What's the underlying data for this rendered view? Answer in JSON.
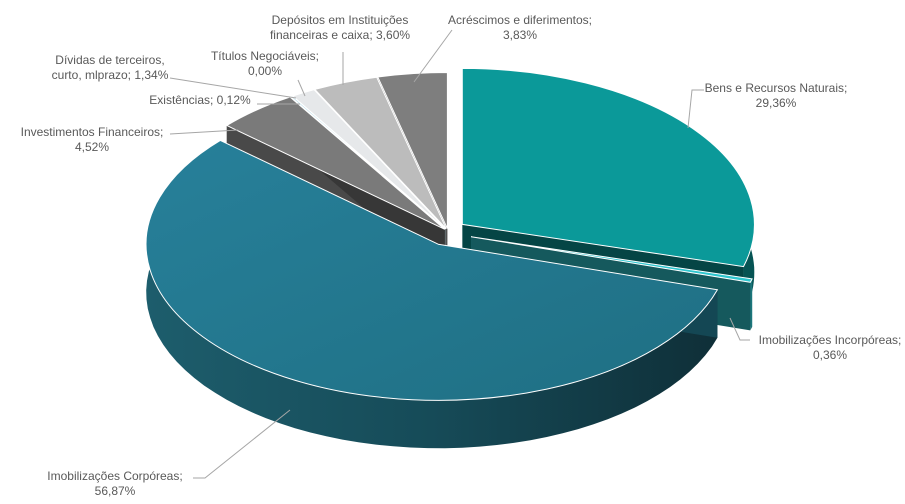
{
  "chart_data": {
    "type": "pie",
    "style": "3d-exploded",
    "slices": [
      {
        "name": "Bens e Recursos Naturais",
        "value": 29.36,
        "label": "29,36%",
        "color": "#0b9999"
      },
      {
        "name": "Imobilizações Incorpóreas",
        "value": 0.36,
        "label": "0,36%",
        "color": "#2ec6cf"
      },
      {
        "name": "Imobilizações Corpóreas",
        "value": 56.87,
        "label": "56,87%",
        "color": "#22778c"
      },
      {
        "name": "Investimentos Financeiros",
        "value": 4.52,
        "label": "4,52%",
        "color": "#7a7a7a"
      },
      {
        "name": "Existências",
        "value": 0.12,
        "label": "0,12%",
        "color": "#bfe0ec"
      },
      {
        "name": "Dívidas de terceiros, curto, mlprazo",
        "value": 1.34,
        "label": "1,34%",
        "color": "#e6e8ea"
      },
      {
        "name": "Títulos Negociáveis",
        "value": 0.0,
        "label": "0,00%",
        "color": "#d5d5d5"
      },
      {
        "name": "Depósitos em Instituições financeiras e caixa",
        "value": 3.6,
        "label": "3,60%",
        "color": "#bcbcbc"
      },
      {
        "name": "Acréscimos e diferimentos",
        "value": 3.83,
        "label": "3,83%",
        "color": "#7e7e7e"
      }
    ],
    "labels": [
      {
        "slice": 0,
        "lines": [
          "Bens e Recursos Naturais;",
          "29,36%"
        ]
      },
      {
        "slice": 1,
        "lines": [
          "Imobilizações Incorpóreas;",
          "0,36%"
        ]
      },
      {
        "slice": 2,
        "lines": [
          "Imobilizações Corpóreas;",
          "56,87%"
        ]
      },
      {
        "slice": 3,
        "lines": [
          "Investimentos Financeiros;",
          "4,52%"
        ]
      },
      {
        "slice": 4,
        "lines": [
          "Existências; 0,12%"
        ]
      },
      {
        "slice": 5,
        "lines": [
          "Dívidas de terceiros,",
          "curto, mlprazo; 1,34%"
        ]
      },
      {
        "slice": 6,
        "lines": [
          "Títulos Negociáveis;",
          "0,00%"
        ]
      },
      {
        "slice": 7,
        "lines": [
          "Depósitos em Instituições",
          "financeiras e caixa; 3,60%"
        ]
      },
      {
        "slice": 8,
        "lines": [
          "Acréscimos e diferimentos;",
          "3,83%"
        ]
      }
    ],
    "legend": "none"
  }
}
